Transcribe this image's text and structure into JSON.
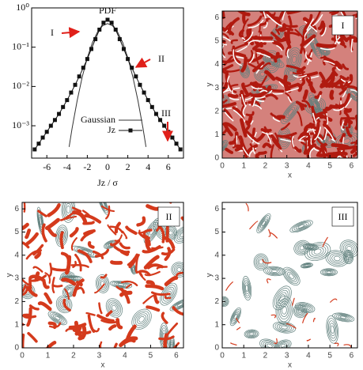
{
  "chart_data": [
    {
      "type": "line",
      "title": "PDF",
      "xlabel": "Jz / σ",
      "log_y": true,
      "xlim": [
        -7.5,
        7.5
      ],
      "xticks": [
        -6,
        -4,
        -2,
        0,
        2,
        4,
        6
      ],
      "ylim": [
        0.00015,
        1
      ],
      "yticks": [
        {
          "value": 0.001,
          "label": "10⁻³"
        },
        {
          "value": 0.01,
          "label": "10⁻²"
        },
        {
          "value": 0.1,
          "label": "10⁻¹"
        },
        {
          "value": 1,
          "label": "10⁰"
        }
      ],
      "annotations": [
        "I",
        "II",
        "III"
      ],
      "series": [
        {
          "name": "Gaussian",
          "color": "#333333",
          "marker": "none",
          "x": [
            -3.8,
            -3.5,
            -3,
            -2.5,
            -2,
            -1.5,
            -1,
            -0.5,
            0,
            0.5,
            1,
            1.5,
            2,
            2.5,
            3,
            3.5,
            3.8
          ],
          "values": [
            0.00029,
            0.00087,
            0.0044,
            0.0175,
            0.054,
            0.13,
            0.24,
            0.35,
            0.4,
            0.35,
            0.24,
            0.13,
            0.054,
            0.0175,
            0.0044,
            0.00087,
            0.00029
          ]
        },
        {
          "name": "Jz",
          "color": "#111111",
          "marker": "square",
          "x": [
            -7.2,
            -6.8,
            -6.4,
            -6,
            -5.6,
            -5.2,
            -4.8,
            -4.4,
            -4,
            -3.6,
            -3.2,
            -2.8,
            -2.4,
            -2,
            -1.6,
            -1.2,
            -0.8,
            -0.4,
            0,
            0.4,
            0.8,
            1.2,
            1.6,
            2,
            2.4,
            2.8,
            3.2,
            3.6,
            4,
            4.4,
            4.8,
            5.2,
            5.6,
            6,
            6.4,
            6.8,
            7.2
          ],
          "values": [
            0.00025,
            0.00035,
            0.0005,
            0.0007,
            0.001,
            0.0014,
            0.002,
            0.003,
            0.0045,
            0.007,
            0.011,
            0.018,
            0.03,
            0.05,
            0.09,
            0.16,
            0.28,
            0.42,
            0.5,
            0.42,
            0.28,
            0.16,
            0.09,
            0.05,
            0.03,
            0.018,
            0.011,
            0.007,
            0.0045,
            0.003,
            0.002,
            0.0014,
            0.001,
            0.0007,
            0.0005,
            0.00035,
            0.00025
          ]
        }
      ]
    },
    {
      "type": "field",
      "label": "I",
      "xlabel": "x",
      "ylabel": "y",
      "xlim": [
        0,
        6.28
      ],
      "ylim": [
        0,
        6.28
      ],
      "xticks": [
        0,
        1,
        2,
        3,
        4,
        5,
        6
      ],
      "yticks": [
        0,
        1,
        2,
        3,
        4,
        5,
        6
      ],
      "color": "#b01a10"
    },
    {
      "type": "field",
      "label": "II",
      "xlabel": "x",
      "ylabel": "y",
      "xlim": [
        0,
        6.28
      ],
      "ylim": [
        0,
        6.28
      ],
      "xticks": [
        0,
        1,
        2,
        3,
        4,
        5,
        6
      ],
      "yticks": [
        0,
        1,
        2,
        3,
        4,
        5,
        6
      ],
      "color": "#d43a1c"
    },
    {
      "type": "field",
      "label": "III",
      "xlabel": "x",
      "ylabel": "y",
      "xlim": [
        0,
        6.28
      ],
      "ylim": [
        0,
        6.28
      ],
      "xticks": [
        0,
        1,
        2,
        3,
        4,
        5,
        6
      ],
      "yticks": [
        0,
        1,
        2,
        3,
        4,
        5,
        6
      ],
      "color": "#d43a1c"
    }
  ]
}
